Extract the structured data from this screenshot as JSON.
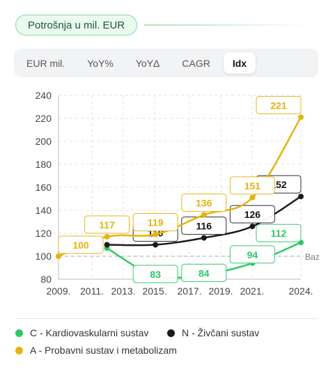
{
  "header": {
    "title": "Potrošnja u mil. EUR"
  },
  "tabs": [
    {
      "label": "EUR mil.",
      "active": false
    },
    {
      "label": "YoY%",
      "active": false
    },
    {
      "label": "YoYΔ",
      "active": false
    },
    {
      "label": "CAGR",
      "active": false
    },
    {
      "label": "Idx",
      "active": true
    }
  ],
  "chart_data": {
    "type": "line",
    "x": [
      "2009.",
      "2011.",
      "2013.",
      "2015.",
      "2017.",
      "2019.",
      "2021.",
      "2024."
    ],
    "xlim": [
      2009,
      2024
    ],
    "ylim": [
      80,
      240
    ],
    "yticks": [
      80,
      100,
      120,
      140,
      160,
      180,
      200,
      220,
      240
    ],
    "grid": true,
    "baseline": {
      "value": 100,
      "label": "Baz"
    },
    "series": [
      {
        "name": "C - Kardiovaskularni sustav",
        "color": "#2ec866",
        "points": [
          [
            2012,
            107
          ],
          [
            2015,
            83
          ],
          [
            2018,
            84
          ],
          [
            2021,
            94
          ],
          [
            2024,
            112
          ]
        ],
        "labels": [
          "83",
          "84",
          "94",
          "112"
        ]
      },
      {
        "name": "N - Živčani sustav",
        "color": "#1a1a1a",
        "points": [
          [
            2012,
            110
          ],
          [
            2015,
            110
          ],
          [
            2018,
            116
          ],
          [
            2021,
            126
          ],
          [
            2024,
            152
          ]
        ],
        "labels": [
          "110",
          "116",
          "126",
          "152"
        ]
      },
      {
        "name": "A - Probavni sustav i metabolizam",
        "color": "#e6b20e",
        "points": [
          [
            2009,
            100
          ],
          [
            2012,
            117
          ],
          [
            2015,
            119
          ],
          [
            2018,
            136
          ],
          [
            2021,
            151
          ],
          [
            2024,
            221
          ]
        ],
        "labels": [
          "100",
          "117",
          "119",
          "136",
          "151",
          "221"
        ]
      }
    ]
  },
  "legend": [
    {
      "label": "C - Kardiovaskularni sustav",
      "color": "#2ec866"
    },
    {
      "label": "N - Živčani sustav",
      "color": "#1a1a1a"
    },
    {
      "label": "A - Probavni sustav i metabolizam",
      "color": "#e6b20e"
    }
  ]
}
